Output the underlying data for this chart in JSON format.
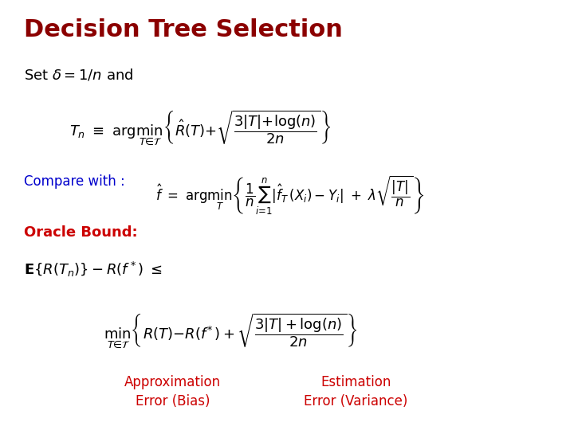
{
  "title": "Decision Tree Selection",
  "title_color": "#8B0000",
  "title_fontsize": 22,
  "background_color": "#ffffff",
  "text_color_black": "#000000",
  "text_color_blue": "#0000CC",
  "text_color_red": "#CC0000",
  "line1": "Set $\\delta = 1/n$ and",
  "line2": "$T_n \\ \\equiv \\ \\arg\\min_{T \\in \\mathcal{T}} \\left\\{ \\hat{R}(T) + \\sqrt{\\dfrac{3|T| + \\log(n)}{2n}} \\right\\}$",
  "line3_prefix": "Compare with : ",
  "line3_eq": "$\\hat{f} \\ = \\ \\arg\\min_{T} \\left\\{ \\dfrac{1}{n} \\sum_{i=1}^{n} |\\hat{f}_T(X_i) - Y_i| \\ + \\ \\lambda\\sqrt{\\dfrac{|T|}{n}} \\right\\}$",
  "line4": "Oracle Bound:",
  "line5": "$\\mathbf{E}\\{R(T_n)\\} - R(f^*) \\ \\leq$",
  "line6": "$\\min_{T \\in \\mathcal{T}} \\left\\{ R(T) - R(f^*) + \\sqrt{\\dfrac{3|T| + \\log(n)}{2n}} \\right\\}$",
  "label_approx": "Approximation\nError (Bias)",
  "label_estim": "Estimation\nError (Variance)"
}
